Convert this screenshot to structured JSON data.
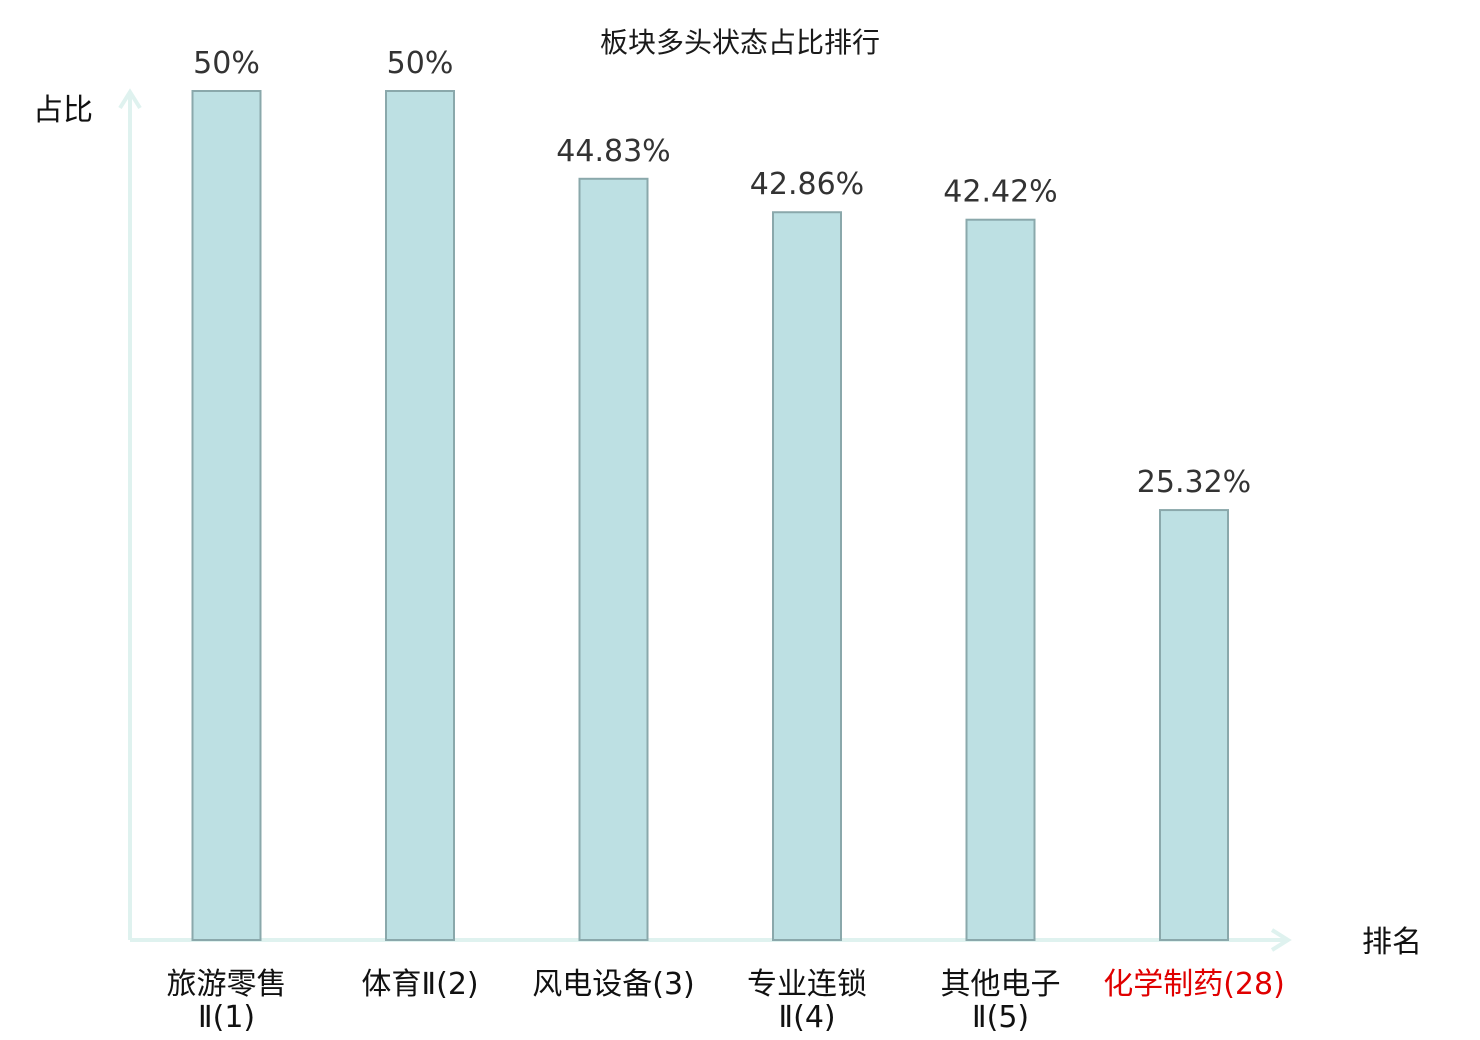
{
  "chart_data": {
    "type": "bar",
    "title": "板块多头状态占比排行",
    "ylabel": "占比",
    "xlabel": "排名",
    "ylim": [
      0,
      50
    ],
    "grid": false,
    "legend": "none",
    "categories": [
      [
        "旅游零售",
        "Ⅱ(1)"
      ],
      [
        "体育Ⅱ(2)"
      ],
      [
        "风电设备(3)"
      ],
      [
        "专业连锁",
        "Ⅱ(4)"
      ],
      [
        "其他电子",
        "Ⅱ(5)"
      ],
      [
        "化学制药(28)"
      ]
    ],
    "values": [
      50,
      50,
      44.83,
      42.86,
      42.42,
      25.32
    ],
    "value_labels": [
      "50%",
      "50%",
      "44.83%",
      "42.86%",
      "42.42%",
      "25.32%"
    ],
    "highlight_index": 5,
    "colors": {
      "bar_fill": "#bde0e3",
      "bar_stroke": "#8aa8ab",
      "axis": "#dff2ef",
      "highlight_text": "#e00000",
      "label_text": "#333333"
    }
  }
}
